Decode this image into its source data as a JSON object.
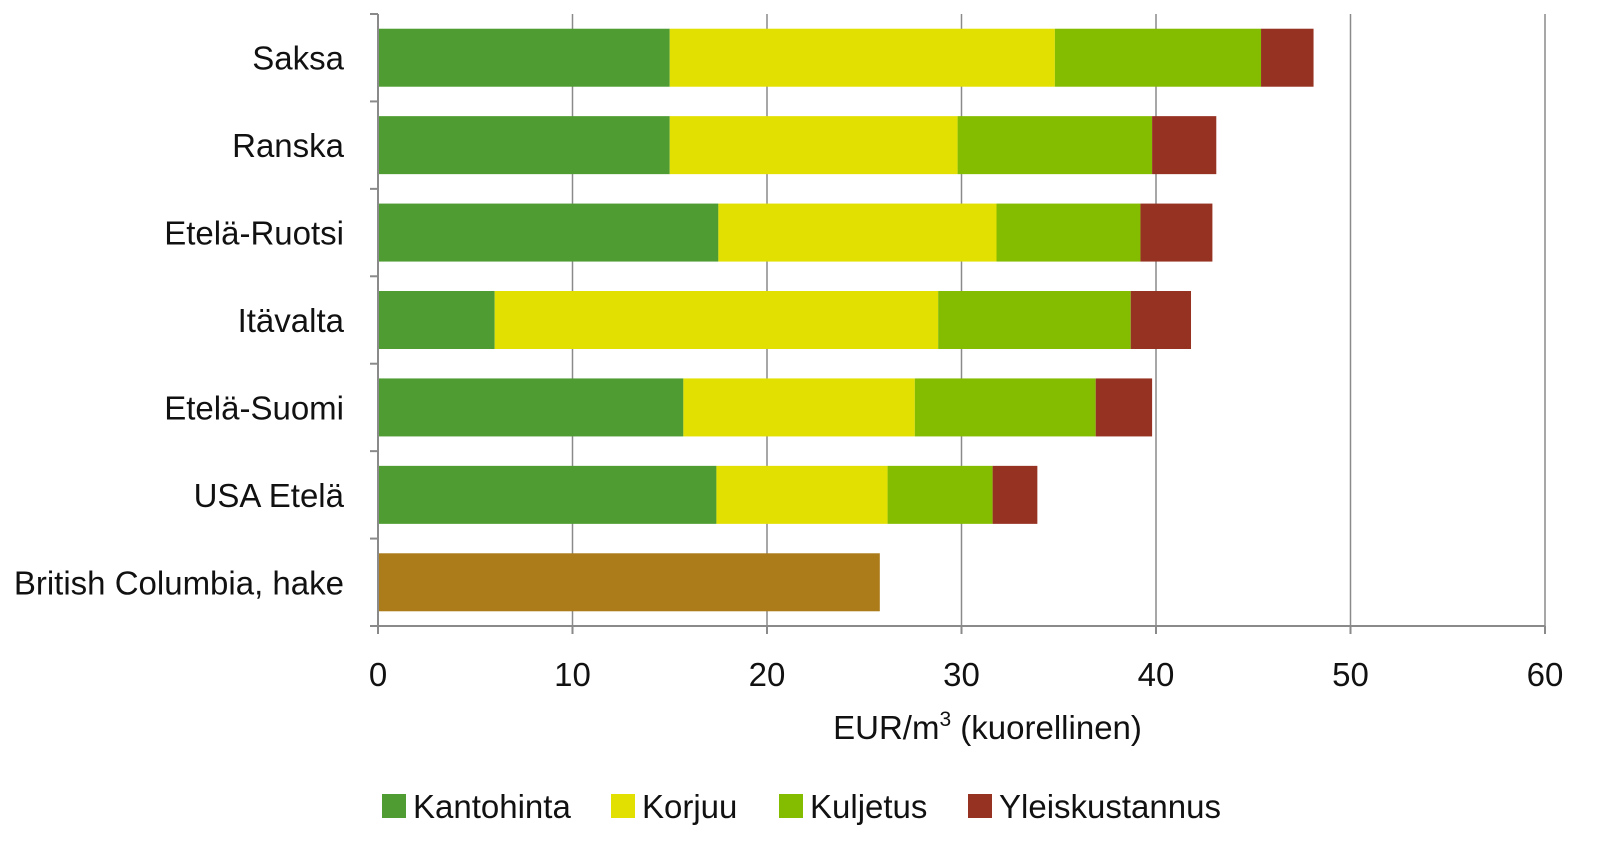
{
  "chart_data": {
    "type": "bar",
    "orientation": "horizontal",
    "stacked": true,
    "categories": [
      "Saksa",
      "Ranska",
      "Etelä-Ruotsi",
      "Itävalta",
      "Etelä-Suomi",
      "USA Etelä",
      "British Columbia, hake"
    ],
    "series": [
      {
        "name": "Kantohinta",
        "color": "#4f9d32",
        "values": [
          15.0,
          15.0,
          17.5,
          6.0,
          15.7,
          17.4,
          null
        ]
      },
      {
        "name": "Korjuu",
        "color": "#e2e000",
        "values": [
          19.8,
          14.8,
          14.3,
          22.8,
          11.9,
          8.8,
          null
        ]
      },
      {
        "name": "Kuljetus",
        "color": "#84bc00",
        "values": [
          10.6,
          10.0,
          7.4,
          9.9,
          9.3,
          5.4,
          null
        ]
      },
      {
        "name": "Yleiskustannus",
        "color": "#963222",
        "values": [
          2.7,
          3.3,
          3.7,
          3.1,
          2.9,
          2.3,
          null
        ]
      }
    ],
    "extra_bars": [
      {
        "category": "British Columbia, hake",
        "value": 25.8,
        "color": "#ac7c1a"
      }
    ],
    "xlim": [
      0,
      60
    ],
    "xticks": [
      0,
      10,
      20,
      30,
      40,
      50,
      60
    ],
    "xlabel": "EUR/m",
    "xlabel_sup": "3",
    "xlabel_suffix": " (kuorellinen)",
    "title": "",
    "grid": "vertical",
    "legend_position": "bottom"
  }
}
